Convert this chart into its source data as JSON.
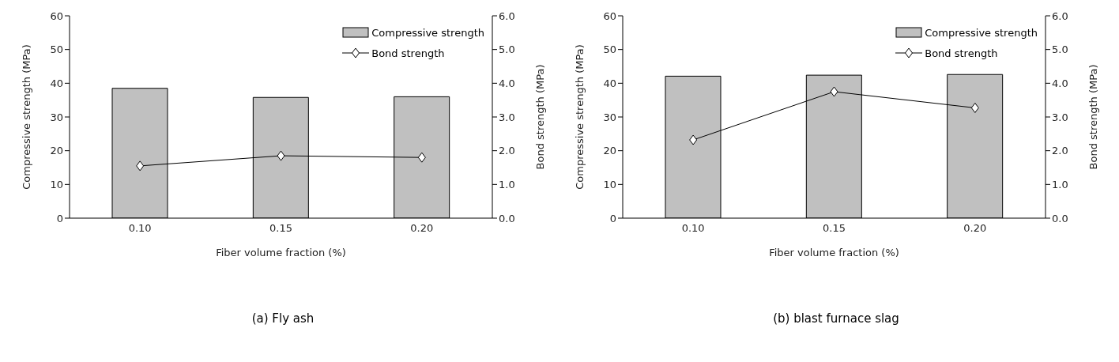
{
  "chart_data": [
    {
      "type": "bar",
      "title": "(a)  Fly ash",
      "xlabel": "Fiber volume fraction (%)",
      "ylabel": "Compressive strength (MPa)",
      "y2label": "Bond strength (MPa)",
      "categories": [
        "0.10",
        "0.15",
        "0.20"
      ],
      "series": [
        {
          "name": "Compressive strength",
          "color": "#c0c0c0",
          "values": [
            38.5,
            35.8,
            36.0
          ]
        },
        {
          "name": "Bond strength",
          "type": "line",
          "axis": "y2",
          "color": "#000000",
          "marker": "diamond",
          "values": [
            1.55,
            1.85,
            1.8
          ]
        }
      ],
      "ylim": [
        0,
        60
      ],
      "yticks": [
        0,
        10,
        20,
        30,
        40,
        50,
        60
      ],
      "y2lim": [
        0,
        6
      ],
      "y2ticks": [
        {
          "value": 0,
          "label": "0.0"
        },
        {
          "value": 1,
          "label": "1.0"
        },
        {
          "value": 2,
          "label": "2.0"
        },
        {
          "value": 3,
          "label": "3.0"
        },
        {
          "value": 4,
          "label": "4.0"
        },
        {
          "value": 5,
          "label": "5.0"
        },
        {
          "value": 6,
          "label": "6.0"
        }
      ],
      "grid": false,
      "legend": "top right"
    },
    {
      "type": "bar",
      "title": "(b)  blast furnace slag",
      "xlabel": "Fiber volume fraction (%)",
      "ylabel": "Compressive strength (MPa)",
      "y2label": "Bond strength (MPa)",
      "categories": [
        "0.10",
        "0.15",
        "0.20"
      ],
      "series": [
        {
          "name": "Compressive strength",
          "color": "#c0c0c0",
          "values": [
            42.1,
            42.4,
            42.6
          ]
        },
        {
          "name": "Bond strength",
          "type": "line",
          "axis": "y2",
          "color": "#000000",
          "marker": "diamond",
          "values": [
            2.32,
            3.75,
            3.27
          ]
        }
      ],
      "ylim": [
        0,
        60
      ],
      "yticks": [
        0,
        10,
        20,
        30,
        40,
        50,
        60
      ],
      "y2lim": [
        0,
        6
      ],
      "y2ticks": [
        {
          "value": 0,
          "label": "0.0"
        },
        {
          "value": 1,
          "label": "1.0"
        },
        {
          "value": 2,
          "label": "2.0"
        },
        {
          "value": 3,
          "label": "3.0"
        },
        {
          "value": 4,
          "label": "4.0"
        },
        {
          "value": 5,
          "label": "5.0"
        },
        {
          "value": 6,
          "label": "6.0"
        }
      ],
      "grid": false,
      "legend": "top right"
    }
  ]
}
